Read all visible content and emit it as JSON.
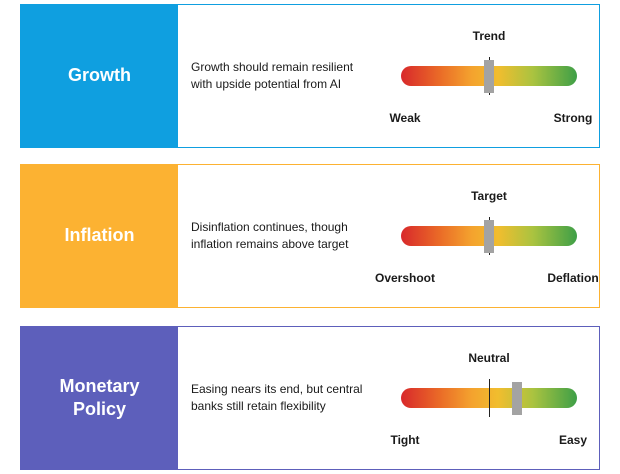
{
  "panels": [
    {
      "id": "growth",
      "label": [
        "Growth"
      ],
      "description": "Growth should remain resilient with upside potential from AI",
      "top_label": "Trend",
      "left_label": "Weak",
      "right_label": "Strong",
      "marker_position": 0.5,
      "color": "#0f9fe0"
    },
    {
      "id": "inflation",
      "label": [
        "Inflation"
      ],
      "description": "Disinflation continues, though inflation remains above target",
      "top_label": "Target",
      "left_label": "Overshoot",
      "right_label": "Deflation",
      "marker_position": 0.5,
      "color": "#fcb232"
    },
    {
      "id": "monetary-policy",
      "label": [
        "Monetary",
        "Policy"
      ],
      "description": "Easing nears its end, but central banks still retain flexibility",
      "top_label": "Neutral",
      "left_label": "Tight",
      "right_label": "Easy",
      "marker_position": 0.66,
      "color": "#5d5fbb"
    }
  ]
}
